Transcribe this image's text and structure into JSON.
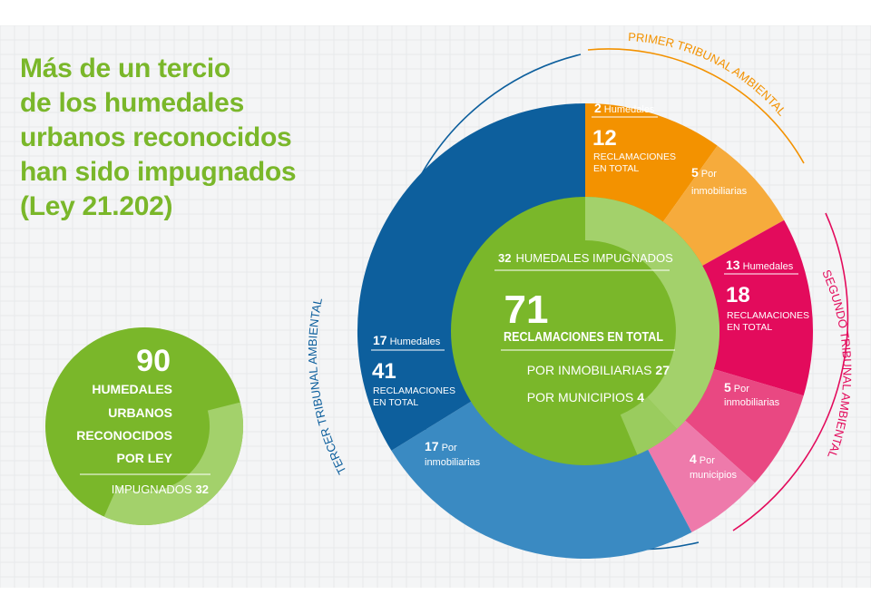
{
  "title_lines": [
    "Más de un tercio",
    "de los humedales",
    "urbanos reconocidos",
    "han sido impugnados",
    "(Ley 21.202)"
  ],
  "colors": {
    "green": "#7ab72a",
    "light_green": "#a3d16b",
    "orange": "#f39200",
    "light_orange": "#f6ab3c",
    "magenta": "#e30b5c",
    "pink": "#e94882",
    "light_pink": "#ee7aab",
    "blue": "#0d5f9d",
    "light_blue": "#3a8ac2"
  },
  "small_circle": {
    "number": "90",
    "lines": [
      "HUMEDALES",
      "URBANOS",
      "RECONOCIDOS",
      "POR LEY"
    ],
    "impugnados_label": "IMPUGNADOS",
    "impugnados_value": "32",
    "total": 90,
    "impugnados": 32
  },
  "court_labels": {
    "primer": "PRIMER TRIBUNAL AMBIENTAL",
    "segundo": "SEGUNDO TRIBUNAL AMBIENTAL",
    "tercer": "TERCER TRIBUNAL AMBIENTAL"
  },
  "center": {
    "humedales_value": "32",
    "humedales_label": "HUMEDALES IMPUGNADOS",
    "total_value": "71",
    "total_label": "RECLAMACIONES EN TOTAL",
    "inmobiliarias_label": "POR INMOBILIARIAS",
    "inmobiliarias_value": "27",
    "municipios_label": "POR MUNICIPIOS",
    "municipios_value": "4"
  },
  "segment_labels": {
    "primer_hum_num": "2",
    "primer_hum_label": "Humedales",
    "primer_total": "12",
    "primer_total_l1": "RECLAMACIONES",
    "primer_total_l2": "EN TOTAL",
    "primer_inmob_num": "5",
    "primer_inmob_l1": "Por",
    "primer_inmob_l2": "inmobiliarias",
    "segundo_hum_num": "13",
    "segundo_hum_label": "Humedales",
    "segundo_total": "18",
    "segundo_total_l1": "RECLAMACIONES",
    "segundo_total_l2": "EN TOTAL",
    "segundo_inmob_num": "5",
    "segundo_inmob_l1": "Por",
    "segundo_inmob_l2": "inmobiliarias",
    "segundo_muni_num": "4",
    "segundo_muni_l1": "Por",
    "segundo_muni_l2": "municipios",
    "tercer_hum_num": "17",
    "tercer_hum_label": "Humedales",
    "tercer_total": "41",
    "tercer_total_l1": "RECLAMACIONES",
    "tercer_total_l2": "EN TOTAL",
    "tercer_inmob_num": "17",
    "tercer_inmob_l1": "Por",
    "tercer_inmob_l2": "inmobiliarias"
  },
  "chart_data": {
    "type": "pie",
    "center_value": 71,
    "courts": [
      {
        "name": "PRIMER TRIBUNAL AMBIENTAL",
        "humedales": 2,
        "reclamaciones": 12,
        "inmobiliarias": 5,
        "municipios": 0
      },
      {
        "name": "SEGUNDO TRIBUNAL AMBIENTAL",
        "humedales": 13,
        "reclamaciones": 18,
        "inmobiliarias": 5,
        "municipios": 4
      },
      {
        "name": "TERCER TRIBUNAL AMBIENTAL",
        "humedales": 17,
        "reclamaciones": 41,
        "inmobiliarias": 17,
        "municipios": 0
      }
    ],
    "inner_ring": {
      "total": 71,
      "inmobiliarias": 27,
      "municipios": 4
    }
  }
}
